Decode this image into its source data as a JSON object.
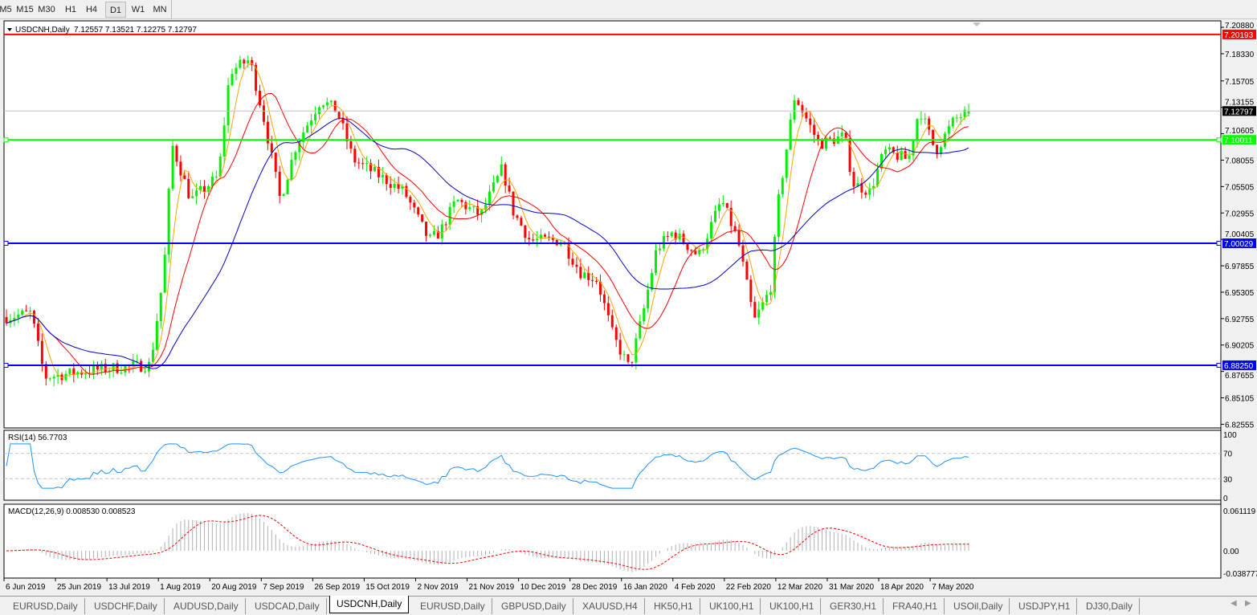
{
  "toolbar": {
    "timeframes": [
      "M5",
      "M15",
      "M30",
      "H1",
      "H4",
      "D1",
      "W1",
      "MN"
    ],
    "active": "D1"
  },
  "chart": {
    "symbol_label": "USDCNH,Daily",
    "ohlc": "7.12557 7.13521 7.12275 7.12797",
    "price_ticks": [
      "7.20880",
      "7.18330",
      "7.15705",
      "7.13155",
      "7.10605",
      "7.08055",
      "7.05505",
      "7.02955",
      "7.00405",
      "6.97855",
      "6.95305",
      "6.92755",
      "6.90205",
      "6.87655",
      "6.85105",
      "6.82555"
    ],
    "levels": [
      {
        "price": 7.20193,
        "label": "7.20193",
        "color": "#ff0000"
      },
      {
        "price": 7.12797,
        "label": "7.12797",
        "color": "#000000",
        "current": true
      },
      {
        "price": 7.10011,
        "label": "7.10011",
        "color": "#00ff00"
      },
      {
        "price": 7.00029,
        "label": "7.00029",
        "color": "#0000ff"
      },
      {
        "price": 6.8825,
        "label": "6.88250",
        "color": "#0000ff"
      }
    ],
    "colors": {
      "bull": "#00ee00",
      "bear": "#ff0000",
      "ma_fast": "#ffa500",
      "ma_mid": "#ff0000",
      "ma_slow": "#0000cc",
      "rsi": "#1e90ff",
      "macd_hist": "#b0b0b0",
      "macd_signal": "#ff0000"
    },
    "date_labels": [
      "6 Jun 2019",
      "25 Jun 2019",
      "13 Jul 2019",
      "1 Aug 2019",
      "20 Aug 2019",
      "7 Sep 2019",
      "26 Sep 2019",
      "15 Oct 2019",
      "2 Nov 2019",
      "21 Nov 2019",
      "10 Dec 2019",
      "28 Dec 2019",
      "16 Jan 2020",
      "4 Feb 2020",
      "22 Feb 2020",
      "12 Mar 2020",
      "31 Mar 2020",
      "18 Apr 2020",
      "7 May 2020"
    ],
    "approx_closes": [
      [
        "2019-06-07",
        6.929
      ],
      [
        "2019-06-16",
        6.933
      ],
      [
        "2019-06-21",
        6.871
      ],
      [
        "2019-07-01",
        6.875
      ],
      [
        "2019-07-12",
        6.879
      ],
      [
        "2019-07-29",
        6.883
      ],
      [
        "2019-08-03",
        6.972
      ],
      [
        "2019-08-06",
        7.096
      ],
      [
        "2019-08-13",
        7.042
      ],
      [
        "2019-08-23",
        7.065
      ],
      [
        "2019-08-27",
        7.166
      ],
      [
        "2019-09-03",
        7.178
      ],
      [
        "2019-09-08",
        7.12
      ],
      [
        "2019-09-14",
        7.042
      ],
      [
        "2019-09-20",
        7.096
      ],
      [
        "2019-09-29",
        7.139
      ],
      [
        "2019-10-05",
        7.128
      ],
      [
        "2019-10-11",
        7.081
      ],
      [
        "2019-10-20",
        7.066
      ],
      [
        "2019-10-29",
        7.05
      ],
      [
        "2019-11-07",
        7.003
      ],
      [
        "2019-11-11",
        7.011
      ],
      [
        "2019-11-17",
        7.042
      ],
      [
        "2019-11-26",
        7.027
      ],
      [
        "2019-12-04",
        7.073
      ],
      [
        "2019-12-08",
        7.031
      ],
      [
        "2019-12-14",
        7.003
      ],
      [
        "2019-12-25",
        7.003
      ],
      [
        "2020-01-01",
        6.972
      ],
      [
        "2020-01-07",
        6.965
      ],
      [
        "2020-01-13",
        6.91
      ],
      [
        "2020-01-19",
        6.879
      ],
      [
        "2020-01-24",
        6.933
      ],
      [
        "2020-01-29",
        6.995
      ],
      [
        "2020-02-04",
        7.011
      ],
      [
        "2020-02-13",
        6.988
      ],
      [
        "2020-02-21",
        7.042
      ],
      [
        "2020-02-27",
        7.003
      ],
      [
        "2020-03-04",
        6.925
      ],
      [
        "2020-03-10",
        6.956
      ],
      [
        "2020-03-13",
        7.042
      ],
      [
        "2020-03-19",
        7.143
      ],
      [
        "2020-03-28",
        7.096
      ],
      [
        "2020-04-06",
        7.104
      ],
      [
        "2020-04-09",
        7.058
      ],
      [
        "2020-04-15",
        7.05
      ],
      [
        "2020-04-20",
        7.089
      ],
      [
        "2020-04-29",
        7.081
      ],
      [
        "2020-05-03",
        7.131
      ],
      [
        "2020-05-09",
        7.089
      ],
      [
        "2020-05-16",
        7.12
      ],
      [
        "2020-05-22",
        7.128
      ]
    ]
  },
  "rsi": {
    "label": "RSI(14) 56.7703",
    "ticks": [
      "100",
      "70",
      "30",
      "0"
    ],
    "levels": [
      70,
      30
    ]
  },
  "macd": {
    "label": "MACD(12,26,9) 0.008530 0.008523",
    "ticks": [
      "0.061119",
      "0.00",
      "-0.038777"
    ],
    "range": [
      -0.038777,
      0.061119
    ]
  },
  "tabs": [
    "EURUSD,Daily",
    "USDCHF,Daily",
    "AUDUSD,Daily",
    "USDCAD,Daily",
    "USDCNH,Daily",
    "EURUSD,Daily",
    "GBPUSD,Daily",
    "XAUUSD,H4",
    "HK50,H1",
    "UK100,H1",
    "UK100,H1",
    "GER30,H1",
    "FRA40,H1",
    "USOil,Daily",
    "USDJPY,H1",
    "DJ30,Daily"
  ],
  "active_tab": "USDCNH,Daily"
}
